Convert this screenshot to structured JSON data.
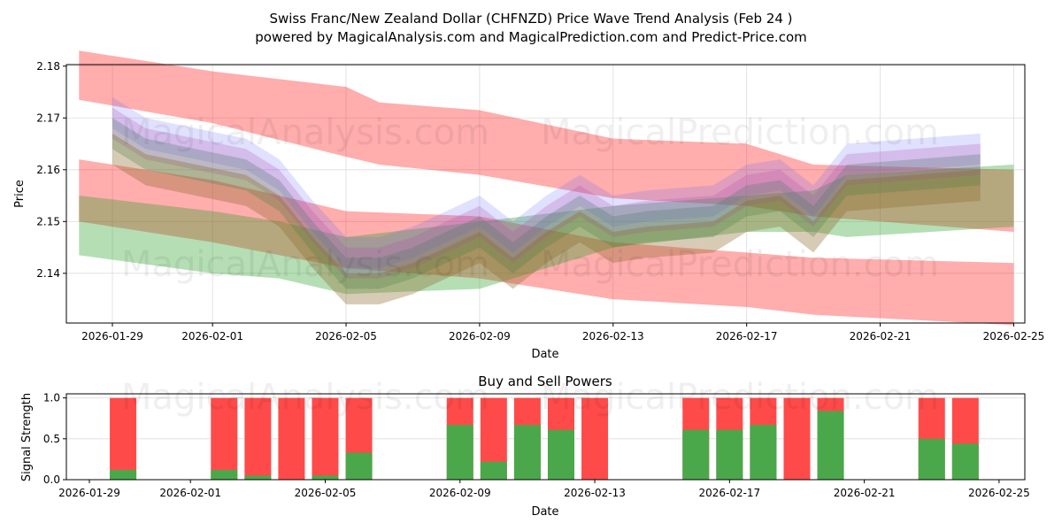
{
  "chart_data": [
    {
      "type": "area",
      "title": "Swiss Franc/New Zealand Dollar (CHFNZD) Price Wave Trend Analysis (Feb 24 )",
      "subtitle": "powered by MagicalAnalysis.com and MagicalPrediction.com and Predict-Price.com",
      "xlabel": "Date",
      "ylabel": "Price",
      "ylim": [
        2.1304,
        2.1803
      ],
      "yticks": [
        "2.14",
        "2.15",
        "2.16",
        "2.17",
        "2.18"
      ],
      "xticks": [
        "2026-01-29",
        "2026-02-01",
        "2026-02-05",
        "2026-02-09",
        "2026-02-13",
        "2026-02-17",
        "2026-02-21",
        "2026-02-25"
      ],
      "grid": true,
      "bands": [
        {
          "name": "upper-red",
          "color": "#ff0000",
          "opacity": 0.32,
          "dates": [
            "2026-01-28",
            "2026-02-01",
            "2026-02-05",
            "2026-02-06",
            "2026-02-09",
            "2026-02-13",
            "2026-02-17",
            "2026-02-19",
            "2026-02-25"
          ],
          "upper": [
            2.183,
            2.179,
            2.176,
            2.173,
            2.1715,
            2.166,
            2.165,
            2.161,
            2.16
          ],
          "lower": [
            2.1735,
            2.169,
            2.1625,
            2.161,
            2.159,
            2.1545,
            2.153,
            2.151,
            2.148
          ]
        },
        {
          "name": "lower-red",
          "color": "#ff0000",
          "opacity": 0.32,
          "dates": [
            "2026-01-28",
            "2026-02-01",
            "2026-02-05",
            "2026-02-09",
            "2026-02-13",
            "2026-02-17",
            "2026-02-19",
            "2026-02-25"
          ],
          "upper": [
            2.162,
            2.158,
            2.152,
            2.151,
            2.146,
            2.144,
            2.143,
            2.142
          ],
          "lower": [
            2.15,
            2.146,
            2.141,
            2.139,
            2.135,
            2.1335,
            2.132,
            2.13
          ]
        },
        {
          "name": "green",
          "color": "#2ca02c",
          "opacity": 0.35,
          "dates": [
            "2026-01-28",
            "2026-02-01",
            "2026-02-03",
            "2026-02-05",
            "2026-02-09",
            "2026-02-13",
            "2026-02-17",
            "2026-02-19",
            "2026-02-20",
            "2026-02-25"
          ],
          "upper": [
            2.155,
            2.152,
            2.15,
            2.147,
            2.15,
            2.153,
            2.155,
            2.156,
            2.159,
            2.161
          ],
          "lower": [
            2.1435,
            2.14,
            2.139,
            2.136,
            2.137,
            2.145,
            2.148,
            2.148,
            2.147,
            2.149
          ]
        }
      ],
      "waves": {
        "dates": [
          "2026-01-29",
          "2026-01-30",
          "2026-02-02",
          "2026-02-03",
          "2026-02-04",
          "2026-02-05",
          "2026-02-06",
          "2026-02-07",
          "2026-02-08",
          "2026-02-09",
          "2026-02-10",
          "2026-02-11",
          "2026-02-12",
          "2026-02-13",
          "2026-02-14",
          "2026-02-16",
          "2026-02-17",
          "2026-02-18",
          "2026-02-19",
          "2026-02-20",
          "2026-02-24"
        ],
        "center": [
          2.167,
          2.163,
          2.159,
          2.155,
          2.147,
          2.14,
          2.14,
          2.142,
          2.145,
          2.148,
          2.143,
          2.148,
          2.152,
          2.148,
          2.149,
          2.15,
          2.154,
          2.155,
          2.15,
          2.158,
          2.16
        ],
        "series": [
          {
            "name": "blue",
            "color": "#6666ff",
            "offset": 0.004,
            "opacity": 0.2
          },
          {
            "name": "green",
            "color": "#2e8b57",
            "offset": 0.0,
            "opacity": 0.3
          },
          {
            "name": "purple",
            "color": "#b04fb0",
            "offset": 0.002,
            "opacity": 0.25
          },
          {
            "name": "brown",
            "color": "#8b6a2b",
            "offset": -0.003,
            "opacity": 0.35
          }
        ],
        "halfwidth": 0.003
      }
    },
    {
      "type": "bar",
      "title": "Buy and Sell Powers",
      "xlabel": "Date",
      "ylabel": "Signal Strength",
      "ylim": [
        0,
        1.05
      ],
      "yticks": [
        "0.0",
        "0.5",
        "1.0"
      ],
      "xticks": [
        "2026-01-29",
        "2026-02-01",
        "2026-02-05",
        "2026-02-09",
        "2026-02-13",
        "2026-02-17",
        "2026-02-21",
        "2026-02-25"
      ],
      "buy_color": "#4aa84a",
      "sell_color": "#ff4a4a",
      "dates": [
        "2026-01-30",
        "2026-02-02",
        "2026-02-03",
        "2026-02-04",
        "2026-02-05",
        "2026-02-06",
        "2026-02-09",
        "2026-02-10",
        "2026-02-11",
        "2026-02-12",
        "2026-02-13",
        "2026-02-16",
        "2026-02-17",
        "2026-02-18",
        "2026-02-19",
        "2026-02-20",
        "2026-02-23",
        "2026-02-24"
      ],
      "buy": [
        0.12,
        0.12,
        0.05,
        0.0,
        0.05,
        0.33,
        0.67,
        0.22,
        0.67,
        0.61,
        0.0,
        0.61,
        0.61,
        0.67,
        0.0,
        0.84,
        0.5,
        0.44
      ]
    }
  ],
  "watermarks": [
    "MagicalAnalysis.com",
    "MagicalPrediction.com"
  ]
}
